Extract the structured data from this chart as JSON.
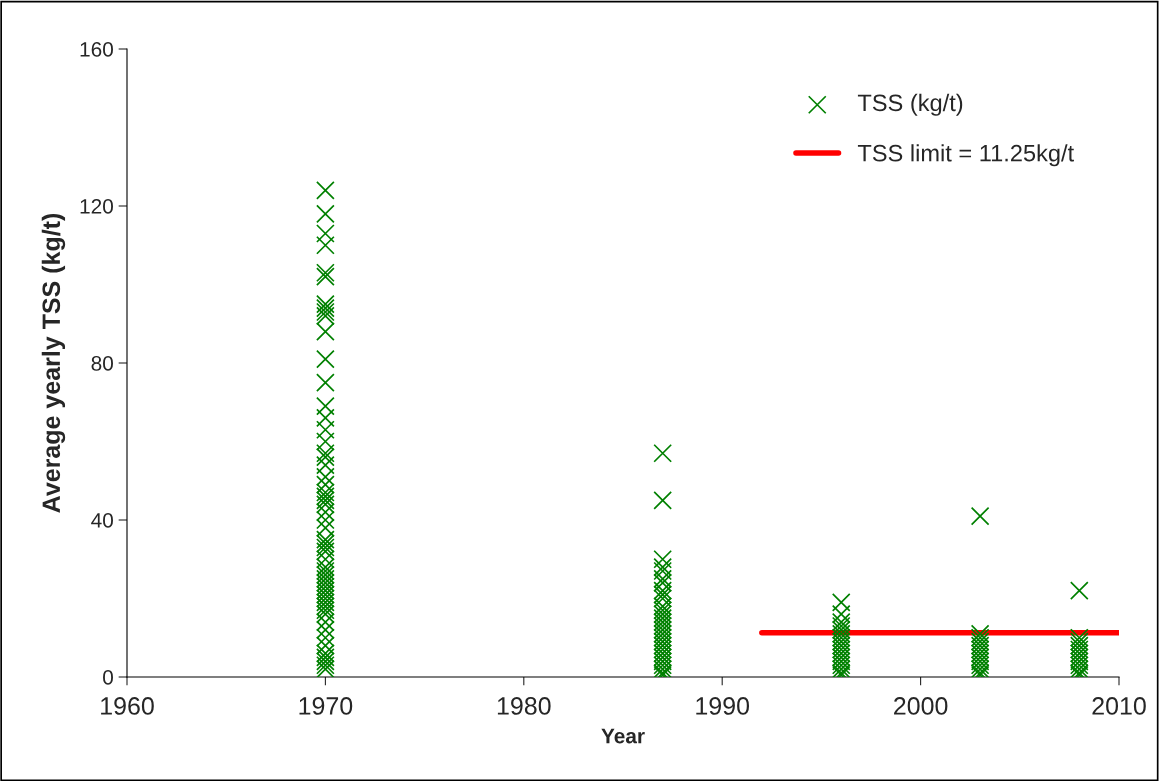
{
  "chart_data": {
    "type": "scatter",
    "xlabel": "Year",
    "ylabel": "Average yearly TSS (kg/t)",
    "xlim": [
      1960,
      2010
    ],
    "xticks": [
      1960,
      1970,
      1980,
      1990,
      2000,
      2010
    ],
    "ylim": [
      0,
      160
    ],
    "yticks": [
      0,
      40,
      80,
      120,
      160
    ],
    "grid": false,
    "legend": "top right",
    "marker": "cross",
    "series": [
      {
        "name": "TSS (kg/t)",
        "color": "#008000",
        "x": [
          1970,
          1970,
          1970,
          1970,
          1970,
          1970,
          1970,
          1970,
          1970,
          1970,
          1970,
          1970,
          1970,
          1970,
          1970,
          1970,
          1970,
          1970,
          1970,
          1970,
          1970,
          1970,
          1970,
          1970,
          1970,
          1970,
          1970,
          1970,
          1970,
          1970,
          1970,
          1970,
          1970,
          1970,
          1970,
          1970,
          1970,
          1970,
          1970,
          1970,
          1970,
          1970,
          1970,
          1970,
          1970,
          1970,
          1970,
          1970,
          1970,
          1970,
          1970,
          1970,
          1970,
          1970,
          1970,
          1970,
          1987,
          1987,
          1987,
          1987,
          1987,
          1987,
          1987,
          1987,
          1987,
          1987,
          1987,
          1987,
          1987,
          1987,
          1987,
          1987,
          1987,
          1987,
          1987,
          1987,
          1987,
          1987,
          1987,
          1987,
          1987,
          1987,
          1987,
          1987,
          1987,
          1996,
          1996,
          1996,
          1996,
          1996,
          1996,
          1996,
          1996,
          1996,
          1996,
          1996,
          1996,
          1996,
          1996,
          1996,
          1996,
          1996,
          2003,
          2003,
          2003,
          2003,
          2003,
          2003,
          2003,
          2003,
          2003,
          2003,
          2003,
          2003,
          2003,
          2008,
          2008,
          2008,
          2008,
          2008,
          2008,
          2008,
          2008,
          2008,
          2008,
          2008,
          2008
        ],
        "values": [
          124,
          118,
          113,
          110,
          103,
          102,
          95,
          94,
          93,
          92,
          88,
          81,
          75,
          69,
          66,
          63,
          60,
          57,
          56,
          54,
          51,
          49,
          47,
          46,
          45,
          44,
          42,
          40,
          38,
          35,
          34,
          33,
          32,
          30,
          28,
          27,
          26,
          25,
          24,
          23,
          22,
          21,
          20,
          19,
          18,
          17,
          16,
          14,
          12,
          10,
          8,
          6,
          5,
          4,
          3,
          2,
          57,
          45,
          30,
          28,
          27,
          25,
          24,
          22,
          21,
          20,
          18,
          17,
          16,
          15,
          14,
          13,
          12,
          11,
          10,
          9,
          8,
          7,
          6,
          5,
          4,
          3,
          2,
          1,
          0.5,
          19,
          16,
          14,
          13,
          12,
          11,
          10,
          9,
          8,
          7,
          6,
          5,
          4,
          3,
          2,
          1,
          0.5,
          41,
          11,
          10,
          9,
          8,
          7,
          6,
          5,
          4,
          3,
          2,
          1,
          0.5,
          22,
          10,
          9,
          8,
          7,
          6,
          5,
          4,
          3,
          2,
          1,
          0.5
        ]
      },
      {
        "name": "TSS limit = 11.25kg/t",
        "color": "#ff0000",
        "type": "line",
        "marker": "none",
        "x": [
          1992,
          2010
        ],
        "values": [
          11.25,
          11.25
        ]
      }
    ]
  }
}
